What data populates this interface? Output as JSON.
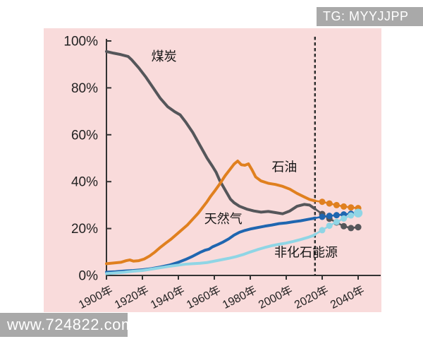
{
  "watermarks": {
    "top_right": "TG: MYYJJPP",
    "bottom_left": "www.724822.com"
  },
  "colors": {
    "panel_bg": "#f9dbdb",
    "axis": "#333333",
    "tick_text": "#222222",
    "series_label_text": "#161616",
    "divider": "#2b2b2b",
    "badge_bg": "#a9a9a9",
    "badge_text": "#ffffff"
  },
  "chart_data": {
    "type": "line",
    "title": "",
    "xlabel": "",
    "ylabel": "",
    "x_range": [
      1900,
      2040
    ],
    "y_range": [
      0,
      100
    ],
    "grid": false,
    "legend": "inline-labels",
    "forecast_divider_year": 2016,
    "x_ticks": [
      {
        "year": 1900,
        "label": "1900年"
      },
      {
        "year": 1920,
        "label": "1920年"
      },
      {
        "year": 1940,
        "label": "1940年"
      },
      {
        "year": 1960,
        "label": "1960年"
      },
      {
        "year": 1980,
        "label": "1980年"
      },
      {
        "year": 2000,
        "label": "2000年"
      },
      {
        "year": 2020,
        "label": "2020年"
      },
      {
        "year": 2040,
        "label": "2040年"
      }
    ],
    "y_ticks": [
      {
        "value": 0,
        "label": "0%"
      },
      {
        "value": 20,
        "label": "20%"
      },
      {
        "value": 40,
        "label": "40%"
      },
      {
        "value": 60,
        "label": "60%"
      },
      {
        "value": 80,
        "label": "80%"
      },
      {
        "value": 100,
        "label": "100%"
      }
    ],
    "series": [
      {
        "id": "coal",
        "label": "煤炭",
        "color": "#55565a",
        "label_at": {
          "year": 1932,
          "pct": 91.5
        },
        "end_dot_radius": 4.6,
        "history": [
          [
            1900,
            95.5
          ],
          [
            1904,
            94.8
          ],
          [
            1908,
            94.2
          ],
          [
            1912,
            93.4
          ],
          [
            1914,
            92.0
          ],
          [
            1918,
            88.5
          ],
          [
            1922,
            84.5
          ],
          [
            1926,
            80.0
          ],
          [
            1930,
            75.5
          ],
          [
            1934,
            72.0
          ],
          [
            1938,
            69.8
          ],
          [
            1941,
            68.5
          ],
          [
            1944,
            65.5
          ],
          [
            1948,
            61.0
          ],
          [
            1952,
            55.5
          ],
          [
            1956,
            50.0
          ],
          [
            1959,
            46.5
          ],
          [
            1961,
            44.0
          ],
          [
            1963,
            40.5
          ],
          [
            1966,
            36.5
          ],
          [
            1969,
            32.5
          ],
          [
            1971,
            31.0
          ],
          [
            1974,
            29.5
          ],
          [
            1978,
            28.3
          ],
          [
            1982,
            27.5
          ],
          [
            1986,
            27.0
          ],
          [
            1990,
            27.3
          ],
          [
            1994,
            26.8
          ],
          [
            1998,
            26.3
          ],
          [
            2002,
            27.5
          ],
          [
            2006,
            29.5
          ],
          [
            2010,
            30.3
          ],
          [
            2013,
            30.0
          ],
          [
            2016,
            28.4
          ]
        ],
        "forecast": [
          [
            2020,
            26.2
          ],
          [
            2024,
            24.2
          ],
          [
            2028,
            22.6
          ],
          [
            2032,
            21.0
          ],
          [
            2036,
            20.2
          ],
          [
            2040,
            20.6
          ]
        ]
      },
      {
        "id": "oil",
        "label": "石油",
        "color": "#e0801f",
        "label_at": {
          "year": 1999,
          "pct": 44.5
        },
        "end_dot_radius": 4.6,
        "history": [
          [
            1900,
            5.0
          ],
          [
            1904,
            5.3
          ],
          [
            1908,
            5.6
          ],
          [
            1911,
            6.3
          ],
          [
            1913,
            6.6
          ],
          [
            1915,
            6.1
          ],
          [
            1918,
            6.3
          ],
          [
            1921,
            7.0
          ],
          [
            1924,
            8.3
          ],
          [
            1927,
            10.0
          ],
          [
            1930,
            12.0
          ],
          [
            1933,
            13.8
          ],
          [
            1936,
            15.5
          ],
          [
            1939,
            17.5
          ],
          [
            1942,
            19.5
          ],
          [
            1945,
            21.5
          ],
          [
            1948,
            24.0
          ],
          [
            1951,
            26.5
          ],
          [
            1954,
            29.5
          ],
          [
            1956,
            31.5
          ],
          [
            1958,
            33.8
          ],
          [
            1960,
            35.8
          ],
          [
            1963,
            39.0
          ],
          [
            1966,
            42.5
          ],
          [
            1969,
            45.5
          ],
          [
            1971,
            47.5
          ],
          [
            1973,
            48.8
          ],
          [
            1975,
            47.2
          ],
          [
            1977,
            47.0
          ],
          [
            1979,
            47.6
          ],
          [
            1981,
            45.0
          ],
          [
            1983,
            42.0
          ],
          [
            1986,
            40.3
          ],
          [
            1990,
            39.3
          ],
          [
            1994,
            38.8
          ],
          [
            1998,
            38.0
          ],
          [
            2002,
            36.8
          ],
          [
            2006,
            35.0
          ],
          [
            2010,
            33.5
          ],
          [
            2013,
            32.4
          ],
          [
            2016,
            31.8
          ]
        ],
        "forecast": [
          [
            2020,
            31.4
          ],
          [
            2024,
            30.7
          ],
          [
            2028,
            30.0
          ],
          [
            2032,
            29.4
          ],
          [
            2036,
            29.0
          ],
          [
            2040,
            28.7
          ]
        ]
      },
      {
        "id": "natural-gas",
        "label": "天然气",
        "color": "#1f66b0",
        "label_at": {
          "year": 1965,
          "pct": 22.3
        },
        "end_dot_radius": 4.6,
        "history": [
          [
            1900,
            1.4
          ],
          [
            1905,
            1.6
          ],
          [
            1910,
            1.9
          ],
          [
            1915,
            2.1
          ],
          [
            1920,
            2.4
          ],
          [
            1925,
            2.9
          ],
          [
            1930,
            3.6
          ],
          [
            1935,
            4.4
          ],
          [
            1940,
            5.6
          ],
          [
            1944,
            6.8
          ],
          [
            1948,
            8.2
          ],
          [
            1952,
            9.8
          ],
          [
            1955,
            10.8
          ],
          [
            1957,
            11.2
          ],
          [
            1959,
            12.2
          ],
          [
            1962,
            13.2
          ],
          [
            1965,
            14.3
          ],
          [
            1968,
            15.6
          ],
          [
            1971,
            17.2
          ],
          [
            1974,
            18.4
          ],
          [
            1977,
            19.2
          ],
          [
            1980,
            19.8
          ],
          [
            1984,
            20.4
          ],
          [
            1988,
            21.0
          ],
          [
            1992,
            21.5
          ],
          [
            1996,
            22.1
          ],
          [
            2000,
            22.4
          ],
          [
            2004,
            22.9
          ],
          [
            2008,
            23.3
          ],
          [
            2012,
            23.9
          ],
          [
            2015,
            24.3
          ],
          [
            2016,
            24.5
          ]
        ],
        "forecast": [
          [
            2020,
            25.0
          ],
          [
            2024,
            25.4
          ],
          [
            2028,
            25.7
          ],
          [
            2032,
            26.0
          ],
          [
            2036,
            26.3
          ],
          [
            2040,
            26.5
          ]
        ]
      },
      {
        "id": "non-fossil",
        "label": "非化石能源",
        "color": "#8fd5e5",
        "label_at": {
          "year": 2011,
          "pct": 8.0
        },
        "end_dot_radius": 6.2,
        "history": [
          [
            1900,
            0.8
          ],
          [
            1905,
            1.1
          ],
          [
            1910,
            1.4
          ],
          [
            1915,
            1.8
          ],
          [
            1920,
            2.1
          ],
          [
            1925,
            2.7
          ],
          [
            1930,
            3.3
          ],
          [
            1935,
            3.9
          ],
          [
            1940,
            4.4
          ],
          [
            1944,
            4.8
          ],
          [
            1948,
            5.0
          ],
          [
            1952,
            5.2
          ],
          [
            1956,
            5.5
          ],
          [
            1960,
            6.1
          ],
          [
            1964,
            6.7
          ],
          [
            1968,
            7.3
          ],
          [
            1972,
            8.0
          ],
          [
            1976,
            8.9
          ],
          [
            1980,
            10.0
          ],
          [
            1984,
            11.0
          ],
          [
            1988,
            11.9
          ],
          [
            1992,
            12.7
          ],
          [
            1996,
            13.3
          ],
          [
            2000,
            13.8
          ],
          [
            2004,
            14.5
          ],
          [
            2008,
            15.3
          ],
          [
            2012,
            16.2
          ],
          [
            2015,
            17.0
          ],
          [
            2016,
            17.5
          ]
        ],
        "forecast": [
          [
            2020,
            19.3
          ],
          [
            2024,
            21.2
          ],
          [
            2028,
            22.8
          ],
          [
            2032,
            24.3
          ],
          [
            2036,
            25.6
          ],
          [
            2040,
            26.6
          ]
        ]
      }
    ]
  }
}
